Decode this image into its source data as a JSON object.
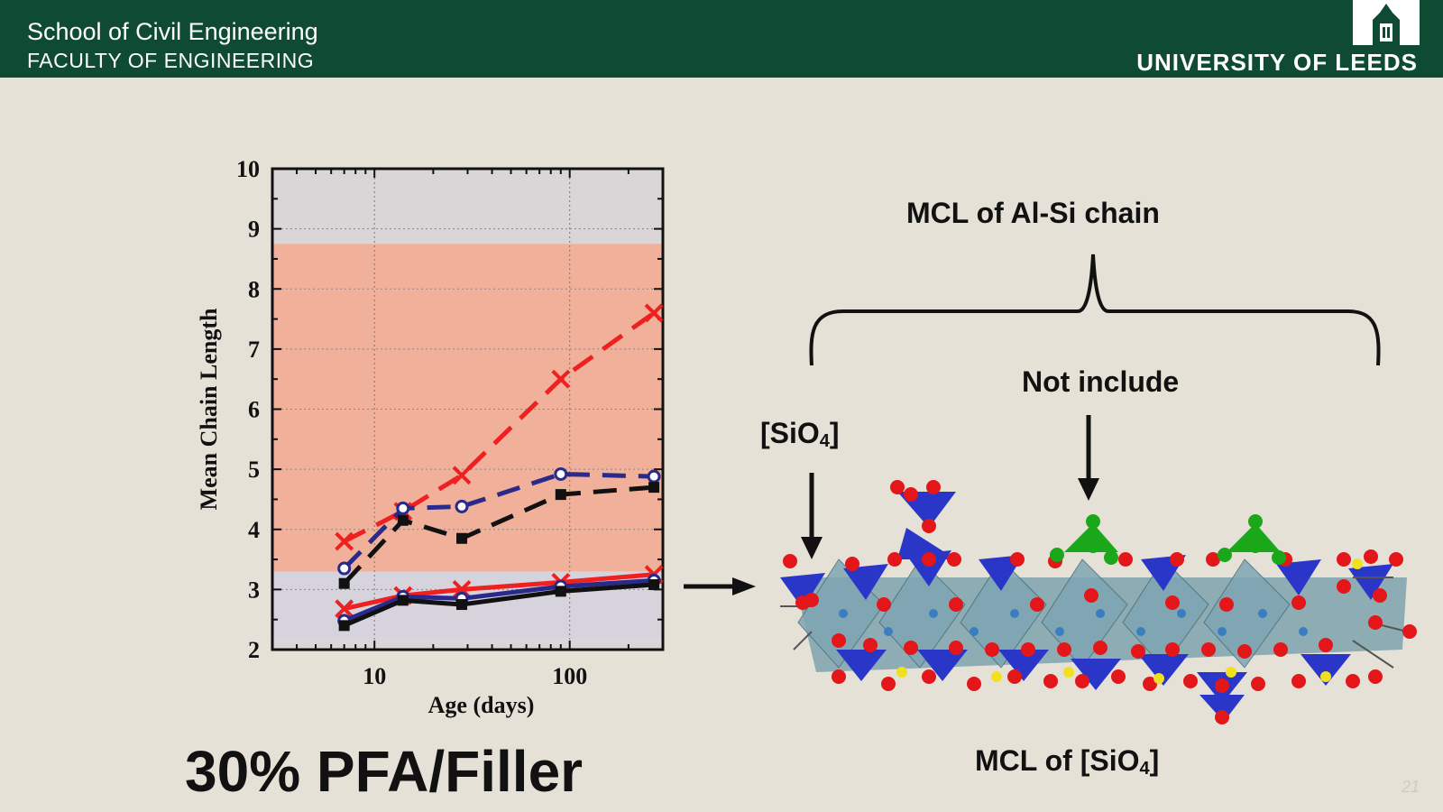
{
  "header": {
    "school": "School of Civil Engineering",
    "faculty": "FACULTY OF ENGINEERING",
    "university": "UNIVERSITY OF LEEDS"
  },
  "slide": {
    "title": "30% PFA/Filler",
    "page_number": "21"
  },
  "diagram": {
    "label_alsi": "MCL of Al-Si chain",
    "label_not_include": "Not include",
    "label_sio4_prefix": "[SiO",
    "label_sio4_sub": "4",
    "label_sio4_suffix": "]",
    "label_mcl_sio4_prefix": "MCL of [SiO",
    "label_mcl_sio4_sub": "4",
    "label_mcl_sio4_suffix": "]",
    "colors": {
      "tetra_blue": "#2a36c8",
      "octa": "#6f9aa8",
      "oxygen": "#e3161a",
      "green": "#1aa81a",
      "yellow": "#f0e020"
    }
  },
  "chart_data": {
    "type": "line",
    "xlabel": "Age (days)",
    "ylabel": "Mean Chain Length",
    "xscale": "log",
    "xlim": [
      3,
      300
    ],
    "ylim": [
      2,
      10
    ],
    "xticks": [
      10,
      100
    ],
    "xtick_labels": [
      "10",
      "100"
    ],
    "yticks": [
      2,
      3,
      4,
      5,
      6,
      7,
      8,
      9,
      10
    ],
    "ytick_labels": [
      "2",
      "3",
      "4",
      "5",
      "6",
      "7",
      "8",
      "9",
      "10"
    ],
    "grid": true,
    "bands": [
      {
        "y0": 3.3,
        "y1": 8.75,
        "color": "#f0b09a"
      },
      {
        "y0": 2.2,
        "y1": 3.3,
        "color": "#d6d3dc"
      }
    ],
    "series": [
      {
        "x": [
          7,
          14,
          28,
          90,
          270
        ],
        "values": [
          3.8,
          4.3,
          4.9,
          6.5,
          7.6
        ],
        "color": "#ee2020",
        "dash": true,
        "marker": "x"
      },
      {
        "x": [
          7,
          14,
          28,
          90,
          270
        ],
        "values": [
          3.35,
          4.35,
          4.38,
          4.92,
          4.88
        ],
        "color": "#2a2a8a",
        "dash": true,
        "marker": "circle"
      },
      {
        "x": [
          7,
          14,
          28,
          90,
          270
        ],
        "values": [
          3.1,
          4.15,
          3.85,
          4.58,
          4.7
        ],
        "color": "#111111",
        "dash": true,
        "marker": "square"
      },
      {
        "x": [
          7,
          14,
          28,
          90,
          270
        ],
        "values": [
          2.68,
          2.9,
          3.0,
          3.12,
          3.25
        ],
        "color": "#ee2020",
        "dash": false,
        "marker": "x"
      },
      {
        "x": [
          7,
          14,
          28,
          90,
          270
        ],
        "values": [
          2.48,
          2.88,
          2.85,
          3.05,
          3.15
        ],
        "color": "#2a2a8a",
        "dash": false,
        "marker": "circle"
      },
      {
        "x": [
          7,
          14,
          28,
          90,
          270
        ],
        "values": [
          2.4,
          2.82,
          2.75,
          2.97,
          3.08
        ],
        "color": "#111111",
        "dash": false,
        "marker": "square"
      }
    ]
  }
}
